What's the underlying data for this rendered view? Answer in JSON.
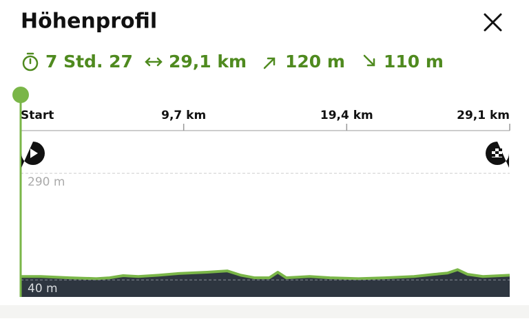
{
  "header": {
    "title": "Höhenprofil",
    "stats": [
      "7 Std. 27",
      "29,1 km",
      "120 m",
      "110 m"
    ]
  },
  "chart_data": {
    "type": "area",
    "x": [
      0,
      1.2,
      2.9,
      4.5,
      5.3,
      6.1,
      7.0,
      8.2,
      9.4,
      11.1,
      12.3,
      13.1,
      13.9,
      14.8,
      15.3,
      15.8,
      17.2,
      18.4,
      20.1,
      21.7,
      23.4,
      24.6,
      25.4,
      26.0,
      26.6,
      27.5,
      29.1
    ],
    "values": [
      48,
      48,
      45,
      43,
      45,
      50,
      48,
      51,
      55,
      58,
      61,
      51,
      45,
      45,
      58,
      45,
      48,
      45,
      43,
      45,
      48,
      53,
      56,
      64,
      53,
      48,
      51
    ],
    "color": "#7ab648",
    "fill": "#2e3640",
    "xlim": [
      0,
      29.1
    ],
    "ylim": [
      0,
      387
    ],
    "xticks": [
      {
        "value": 0,
        "label": "Start"
      },
      {
        "value": 9.7,
        "label": "9,7 km"
      },
      {
        "value": 19.4,
        "label": "19,4 km"
      },
      {
        "value": 29.1,
        "label": "29,1 km"
      }
    ],
    "yticks": [
      {
        "value": 290,
        "label": "290 m"
      },
      {
        "value": 40,
        "label": "40 m"
      }
    ],
    "grid": true
  }
}
